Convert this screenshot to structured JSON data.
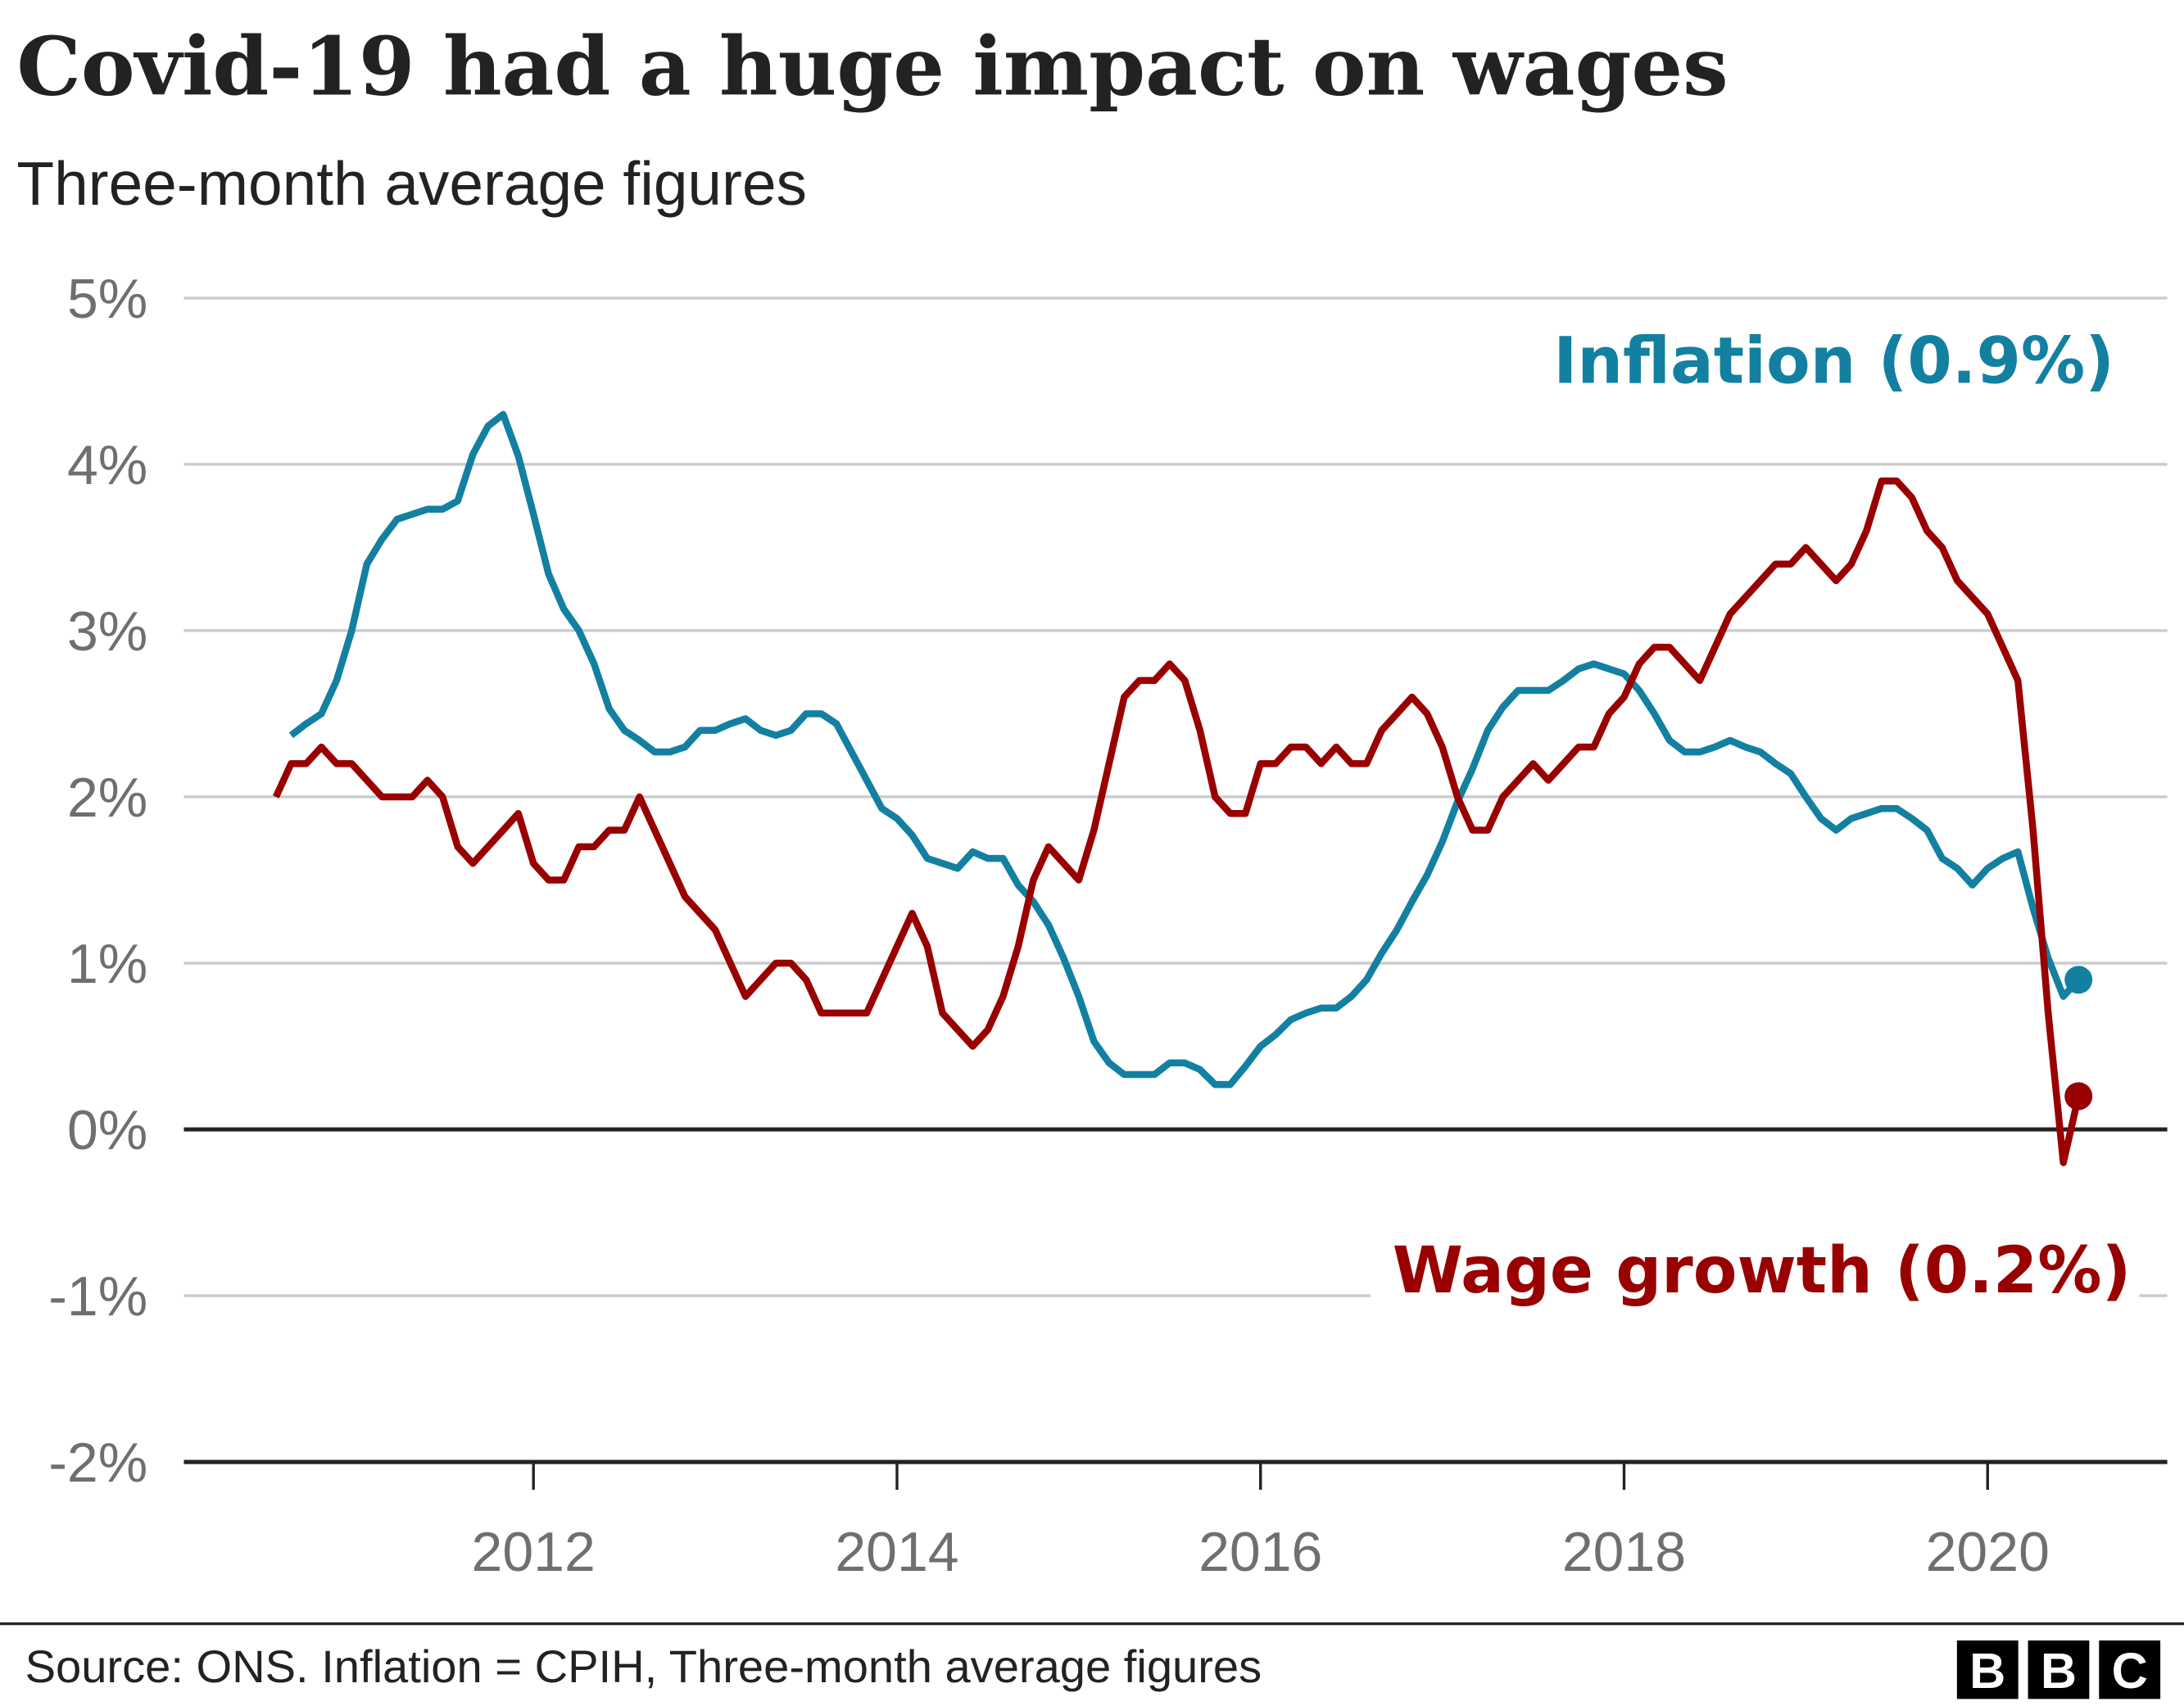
{
  "chart_data": {
    "type": "line",
    "title": "Covid-19 had a huge impact on wages",
    "subtitle": "Three-month average figures",
    "xlabel": "",
    "ylabel": "",
    "ylim": [
      -2,
      5
    ],
    "yticks": [
      "5%",
      "4%",
      "3%",
      "2%",
      "1%",
      "0%",
      "-1%",
      "-2%"
    ],
    "ytick_values": [
      5,
      4,
      3,
      2,
      1,
      0,
      -1,
      -2
    ],
    "xticks": [
      "2012",
      "2014",
      "2016",
      "2018",
      "2020"
    ],
    "grid": true,
    "legend": "direct labels at line ends",
    "x": [
      "2010-08",
      "2010-09",
      "2010-10",
      "2010-11",
      "2010-12",
      "2011-01",
      "2011-02",
      "2011-03",
      "2011-04",
      "2011-05",
      "2011-06",
      "2011-07",
      "2011-08",
      "2011-09",
      "2011-10",
      "2011-11",
      "2011-12",
      "2012-01",
      "2012-02",
      "2012-03",
      "2012-04",
      "2012-05",
      "2012-06",
      "2012-07",
      "2012-08",
      "2012-09",
      "2012-10",
      "2012-11",
      "2012-12",
      "2013-01",
      "2013-02",
      "2013-03",
      "2013-04",
      "2013-05",
      "2013-06",
      "2013-07",
      "2013-08",
      "2013-09",
      "2013-10",
      "2013-11",
      "2013-12",
      "2014-01",
      "2014-02",
      "2014-03",
      "2014-04",
      "2014-05",
      "2014-06",
      "2014-07",
      "2014-08",
      "2014-09",
      "2014-10",
      "2014-11",
      "2014-12",
      "2015-01",
      "2015-02",
      "2015-03",
      "2015-04",
      "2015-05",
      "2015-06",
      "2015-07",
      "2015-08",
      "2015-09",
      "2015-10",
      "2015-11",
      "2015-12",
      "2016-01",
      "2016-02",
      "2016-03",
      "2016-04",
      "2016-05",
      "2016-06",
      "2016-07",
      "2016-08",
      "2016-09",
      "2016-10",
      "2016-11",
      "2016-12",
      "2017-01",
      "2017-02",
      "2017-03",
      "2017-04",
      "2017-05",
      "2017-06",
      "2017-07",
      "2017-08",
      "2017-09",
      "2017-10",
      "2017-11",
      "2017-12",
      "2018-01",
      "2018-02",
      "2018-03",
      "2018-04",
      "2018-05",
      "2018-06",
      "2018-07",
      "2018-08",
      "2018-09",
      "2018-10",
      "2018-11",
      "2018-12",
      "2019-01",
      "2019-02",
      "2019-03",
      "2019-04",
      "2019-05",
      "2019-06",
      "2019-07",
      "2019-08",
      "2019-09",
      "2019-10",
      "2019-11",
      "2019-12",
      "2020-01",
      "2020-02",
      "2020-03",
      "2020-04",
      "2020-05",
      "2020-06",
      "2020-07"
    ],
    "series": [
      {
        "name": "Inflation",
        "label": "Inflation (0.9%)",
        "color": "#1380A1",
        "values": [
          null,
          2.37,
          2.44,
          2.5,
          2.7,
          3.0,
          3.4,
          3.55,
          3.67,
          3.7,
          3.73,
          3.73,
          3.78,
          4.06,
          4.23,
          4.3,
          4.05,
          3.7,
          3.34,
          3.13,
          3.0,
          2.8,
          2.53,
          2.4,
          2.34,
          2.27,
          2.27,
          2.3,
          2.4,
          2.4,
          2.44,
          2.47,
          2.4,
          2.37,
          2.4,
          2.5,
          2.5,
          2.44,
          2.27,
          2.1,
          1.93,
          1.87,
          1.77,
          1.63,
          1.6,
          1.57,
          1.67,
          1.63,
          1.63,
          1.47,
          1.37,
          1.23,
          1.03,
          0.8,
          0.53,
          0.4,
          0.33,
          0.33,
          0.33,
          0.4,
          0.4,
          0.36,
          0.27,
          0.27,
          0.38,
          0.5,
          0.57,
          0.66,
          0.7,
          0.73,
          0.73,
          0.8,
          0.9,
          1.06,
          1.2,
          1.37,
          1.53,
          1.73,
          1.97,
          2.17,
          2.4,
          2.54,
          2.64,
          2.64,
          2.64,
          2.7,
          2.77,
          2.8,
          2.77,
          2.74,
          2.64,
          2.5,
          2.34,
          2.27,
          2.27,
          2.3,
          2.34,
          2.3,
          2.27,
          2.2,
          2.14,
          2.0,
          1.87,
          1.8,
          1.87,
          1.9,
          1.93,
          1.93,
          1.87,
          1.8,
          1.63,
          1.57,
          1.47,
          1.57,
          1.63,
          1.67,
          1.33,
          1.03,
          0.8,
          0.9
        ]
      },
      {
        "name": "Wage growth",
        "label": "Wage growth (0.2%)",
        "color": "#990000",
        "values": [
          2.0,
          2.2,
          2.2,
          2.3,
          2.2,
          2.2,
          2.1,
          2.0,
          2.0,
          2.0,
          2.1,
          2.0,
          1.7,
          1.6,
          1.7,
          1.8,
          1.9,
          1.6,
          1.5,
          1.5,
          1.7,
          1.7,
          1.8,
          1.8,
          2.0,
          1.8,
          1.6,
          1.4,
          1.3,
          1.2,
          1.0,
          0.8,
          0.9,
          1.0,
          1.0,
          0.9,
          0.7,
          0.7,
          0.7,
          0.7,
          0.9,
          1.1,
          1.3,
          1.1,
          0.7,
          0.6,
          0.5,
          0.6,
          0.8,
          1.1,
          1.5,
          1.7,
          1.6,
          1.5,
          1.8,
          2.2,
          2.6,
          2.7,
          2.7,
          2.8,
          2.7,
          2.4,
          2.0,
          1.9,
          1.9,
          2.2,
          2.2,
          2.3,
          2.3,
          2.2,
          2.3,
          2.2,
          2.2,
          2.4,
          2.5,
          2.6,
          2.5,
          2.3,
          2.0,
          1.8,
          1.8,
          2.0,
          2.1,
          2.2,
          2.1,
          2.2,
          2.3,
          2.3,
          2.5,
          2.6,
          2.8,
          2.9,
          2.9,
          2.8,
          2.7,
          2.9,
          3.1,
          3.2,
          3.3,
          3.4,
          3.4,
          3.5,
          3.4,
          3.3,
          3.4,
          3.6,
          3.9,
          3.9,
          3.8,
          3.6,
          3.5,
          3.3,
          3.2,
          3.1,
          2.9,
          2.7,
          1.8,
          0.7,
          -0.2,
          0.2
        ]
      }
    ]
  },
  "footer": {
    "source": "Source: ONS. Inflation = CPIH, Three-month average figures",
    "logo": "BBC",
    "logo_letters": [
      "B",
      "B",
      "C"
    ]
  }
}
